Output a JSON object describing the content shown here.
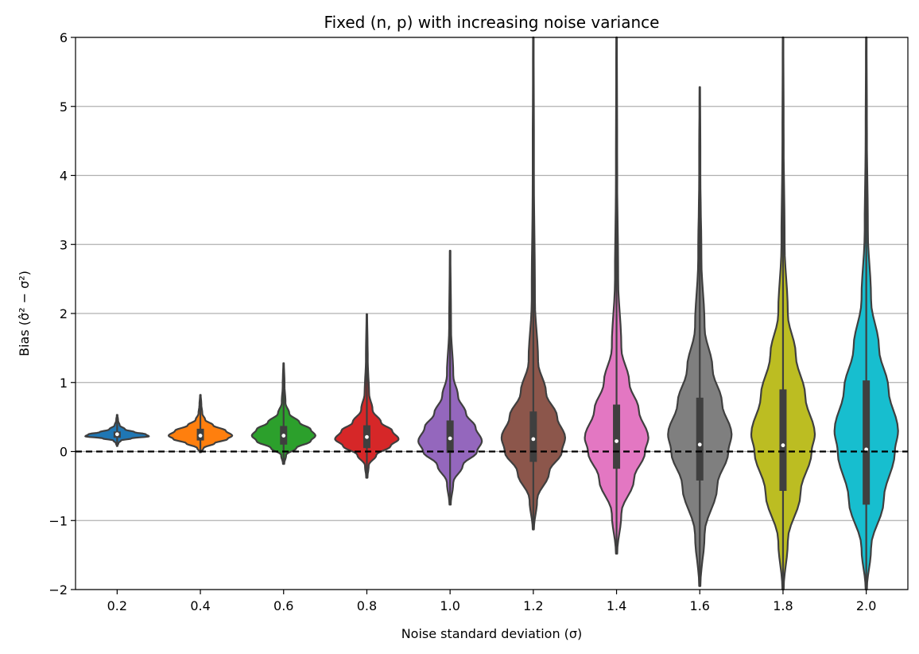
{
  "chart_data": {
    "type": "violin",
    "title": "Fixed (n, p) with increasing noise variance",
    "xlabel": "Noise standard deviation (σ)",
    "ylabel": "Bias (σ̂² − σ²)",
    "ylim": [
      -2,
      6
    ],
    "yticks": [
      -2,
      -1,
      0,
      1,
      2,
      3,
      4,
      5,
      6
    ],
    "yticks_display": [
      "−2",
      "−1",
      "0",
      "1",
      "2",
      "3",
      "4",
      "5",
      "6"
    ],
    "grid": "horizontal",
    "reference_line": {
      "y": 0,
      "style": "dashed",
      "color": "#000000"
    },
    "categories": [
      "0.2",
      "0.4",
      "0.6",
      "0.8",
      "1.0",
      "1.2",
      "1.4",
      "1.6",
      "1.8",
      "2.0"
    ],
    "series": [
      {
        "name": "",
        "color": "#1f77b4",
        "min": 0.08,
        "max": 0.53,
        "q1": 0.2,
        "median": 0.25,
        "q3": 0.29,
        "density": [
          [
            0.08,
            0.01
          ],
          [
            0.12,
            0.04
          ],
          [
            0.16,
            0.12
          ],
          [
            0.19,
            0.45
          ],
          [
            0.22,
            1.0
          ],
          [
            0.25,
            0.9
          ],
          [
            0.28,
            0.55
          ],
          [
            0.32,
            0.25
          ],
          [
            0.38,
            0.08
          ],
          [
            0.45,
            0.03
          ],
          [
            0.53,
            0.01
          ]
        ]
      },
      {
        "name": "",
        "color": "#ff7f0e",
        "min": -0.01,
        "max": 0.82,
        "q1": 0.16,
        "median": 0.23,
        "q3": 0.33,
        "density": [
          [
            -0.01,
            0.02
          ],
          [
            0.05,
            0.1
          ],
          [
            0.12,
            0.45
          ],
          [
            0.18,
            0.85
          ],
          [
            0.23,
            1.0
          ],
          [
            0.3,
            0.8
          ],
          [
            0.38,
            0.4
          ],
          [
            0.46,
            0.15
          ],
          [
            0.55,
            0.06
          ],
          [
            0.68,
            0.03
          ],
          [
            0.82,
            0.01
          ]
        ]
      },
      {
        "name": "",
        "color": "#2ca02c",
        "min": -0.18,
        "max": 1.28,
        "q1": 0.1,
        "median": 0.23,
        "q3": 0.37,
        "density": [
          [
            -0.18,
            0.02
          ],
          [
            -0.05,
            0.08
          ],
          [
            0.05,
            0.4
          ],
          [
            0.15,
            0.85
          ],
          [
            0.23,
            1.0
          ],
          [
            0.32,
            0.85
          ],
          [
            0.42,
            0.5
          ],
          [
            0.55,
            0.18
          ],
          [
            0.7,
            0.06
          ],
          [
            0.95,
            0.03
          ],
          [
            1.28,
            0.01
          ]
        ]
      },
      {
        "name": "",
        "color": "#d62728",
        "min": -0.38,
        "max": 1.99,
        "q1": 0.05,
        "median": 0.21,
        "q3": 0.38,
        "density": [
          [
            -0.38,
            0.02
          ],
          [
            -0.2,
            0.06
          ],
          [
            -0.05,
            0.3
          ],
          [
            0.08,
            0.75
          ],
          [
            0.18,
            1.0
          ],
          [
            0.3,
            0.8
          ],
          [
            0.42,
            0.45
          ],
          [
            0.6,
            0.18
          ],
          [
            0.85,
            0.07
          ],
          [
            1.3,
            0.03
          ],
          [
            1.99,
            0.01
          ]
        ]
      },
      {
        "name": "",
        "color": "#9467bd",
        "min": -0.77,
        "max": 2.91,
        "q1": -0.02,
        "median": 0.19,
        "q3": 0.45,
        "density": [
          [
            -0.77,
            0.02
          ],
          [
            -0.45,
            0.1
          ],
          [
            -0.2,
            0.4
          ],
          [
            0.0,
            0.85
          ],
          [
            0.15,
            1.0
          ],
          [
            0.35,
            0.8
          ],
          [
            0.55,
            0.5
          ],
          [
            0.8,
            0.25
          ],
          [
            1.1,
            0.1
          ],
          [
            1.8,
            0.03
          ],
          [
            2.91,
            0.01
          ]
        ]
      },
      {
        "name": "",
        "color": "#8c564b",
        "min": -1.13,
        "max": 6.0,
        "q1": -0.15,
        "median": 0.18,
        "q3": 0.58,
        "density": [
          [
            -1.13,
            0.02
          ],
          [
            -0.7,
            0.12
          ],
          [
            -0.3,
            0.5
          ],
          [
            0.0,
            0.9
          ],
          [
            0.2,
            1.0
          ],
          [
            0.5,
            0.75
          ],
          [
            0.85,
            0.4
          ],
          [
            1.3,
            0.15
          ],
          [
            2.2,
            0.05
          ],
          [
            4.0,
            0.02
          ],
          [
            6.0,
            0.01
          ]
        ]
      },
      {
        "name": "",
        "color": "#e377c2",
        "min": -1.48,
        "max": 6.0,
        "q1": -0.25,
        "median": 0.15,
        "q3": 0.68,
        "density": [
          [
            -1.48,
            0.02
          ],
          [
            -0.9,
            0.15
          ],
          [
            -0.4,
            0.55
          ],
          [
            0.0,
            0.9
          ],
          [
            0.2,
            1.0
          ],
          [
            0.6,
            0.7
          ],
          [
            1.0,
            0.4
          ],
          [
            1.5,
            0.15
          ],
          [
            2.5,
            0.05
          ],
          [
            4.0,
            0.02
          ],
          [
            6.0,
            0.01
          ]
        ]
      },
      {
        "name": "",
        "color": "#7f7f7f",
        "min": -1.95,
        "max": 5.28,
        "q1": -0.42,
        "median": 0.1,
        "q3": 0.78,
        "density": [
          [
            -1.95,
            0.02
          ],
          [
            -1.2,
            0.15
          ],
          [
            -0.5,
            0.55
          ],
          [
            0.0,
            0.9
          ],
          [
            0.25,
            1.0
          ],
          [
            0.7,
            0.7
          ],
          [
            1.2,
            0.4
          ],
          [
            1.8,
            0.15
          ],
          [
            2.8,
            0.05
          ],
          [
            4.0,
            0.02
          ],
          [
            5.28,
            0.01
          ]
        ]
      },
      {
        "name": "",
        "color": "#bcbd22",
        "min": -2.0,
        "max": 6.0,
        "q1": -0.57,
        "median": 0.09,
        "q3": 0.9,
        "density": [
          [
            -2.0,
            0.02
          ],
          [
            -1.3,
            0.15
          ],
          [
            -0.6,
            0.55
          ],
          [
            0.0,
            0.9
          ],
          [
            0.25,
            1.0
          ],
          [
            0.8,
            0.7
          ],
          [
            1.4,
            0.4
          ],
          [
            2.0,
            0.15
          ],
          [
            3.0,
            0.05
          ],
          [
            4.5,
            0.02
          ],
          [
            6.0,
            0.01
          ]
        ]
      },
      {
        "name": "",
        "color": "#17becf",
        "min": -2.0,
        "max": 6.0,
        "q1": -0.77,
        "median": 0.03,
        "q3": 1.03,
        "density": [
          [
            -2.0,
            0.02
          ],
          [
            -1.4,
            0.15
          ],
          [
            -0.7,
            0.55
          ],
          [
            0.0,
            0.9
          ],
          [
            0.3,
            1.0
          ],
          [
            0.9,
            0.7
          ],
          [
            1.5,
            0.4
          ],
          [
            2.2,
            0.15
          ],
          [
            3.2,
            0.05
          ],
          [
            4.6,
            0.02
          ],
          [
            6.0,
            0.01
          ]
        ]
      }
    ]
  }
}
